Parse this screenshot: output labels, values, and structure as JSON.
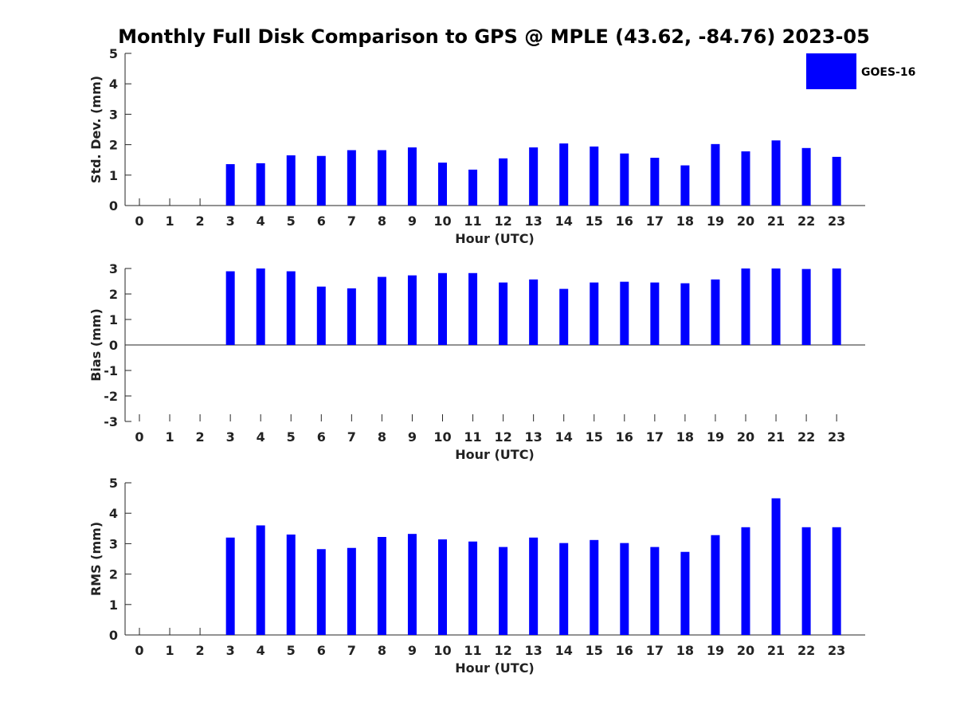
{
  "chart_data": {
    "title": "Monthly Full Disk Comparison to GPS @ MPLE (43.62, -84.76) 2023-05",
    "legend": {
      "label": "GOES-16",
      "color": "#0000ff",
      "placement": "top-right"
    },
    "panels": [
      {
        "type": "bar",
        "ylabel": "Std. Dev. (mm)",
        "xlabel": "Hour (UTC)",
        "ylim": [
          0,
          5
        ],
        "yticks": [
          0,
          1,
          2,
          3,
          4,
          5
        ],
        "categories": [
          "0",
          "1",
          "2",
          "3",
          "4",
          "5",
          "6",
          "7",
          "8",
          "9",
          "10",
          "11",
          "12",
          "13",
          "14",
          "15",
          "16",
          "17",
          "18",
          "19",
          "20",
          "21",
          "22",
          "23"
        ],
        "values": [
          null,
          null,
          null,
          1.36,
          1.39,
          1.65,
          1.63,
          1.82,
          1.82,
          1.91,
          1.41,
          1.18,
          1.55,
          1.91,
          2.04,
          1.94,
          1.71,
          1.57,
          1.32,
          2.02,
          1.78,
          2.14,
          1.89,
          1.6
        ],
        "series_name": "GOES-16"
      },
      {
        "type": "bar",
        "ylabel": "Bias (mm)",
        "xlabel": "Hour (UTC)",
        "ylim": [
          -3,
          3
        ],
        "yticks": [
          -3,
          -2,
          -1,
          0,
          1,
          2,
          3
        ],
        "categories": [
          "0",
          "1",
          "2",
          "3",
          "4",
          "5",
          "6",
          "7",
          "8",
          "9",
          "10",
          "11",
          "12",
          "13",
          "14",
          "15",
          "16",
          "17",
          "18",
          "19",
          "20",
          "21",
          "22",
          "23"
        ],
        "values": [
          null,
          null,
          null,
          2.89,
          3.0,
          2.89,
          2.29,
          2.22,
          2.67,
          2.73,
          2.82,
          2.82,
          2.45,
          2.57,
          2.2,
          2.45,
          2.48,
          2.45,
          2.42,
          2.57,
          3.0,
          3.0,
          2.98,
          3.0
        ],
        "series_name": "GOES-16"
      },
      {
        "type": "bar",
        "ylabel": "RMS (mm)",
        "xlabel": "Hour (UTC)",
        "ylim": [
          0,
          5
        ],
        "yticks": [
          0,
          1,
          2,
          3,
          4,
          5
        ],
        "categories": [
          "0",
          "1",
          "2",
          "3",
          "4",
          "5",
          "6",
          "7",
          "8",
          "9",
          "10",
          "11",
          "12",
          "13",
          "14",
          "15",
          "16",
          "17",
          "18",
          "19",
          "20",
          "21",
          "22",
          "23"
        ],
        "values": [
          null,
          null,
          null,
          3.2,
          3.6,
          3.3,
          2.82,
          2.86,
          3.22,
          3.32,
          3.14,
          3.07,
          2.89,
          3.2,
          3.02,
          3.12,
          3.02,
          2.89,
          2.73,
          3.28,
          3.54,
          4.49,
          3.54,
          3.54
        ],
        "series_name": "GOES-16"
      }
    ]
  }
}
